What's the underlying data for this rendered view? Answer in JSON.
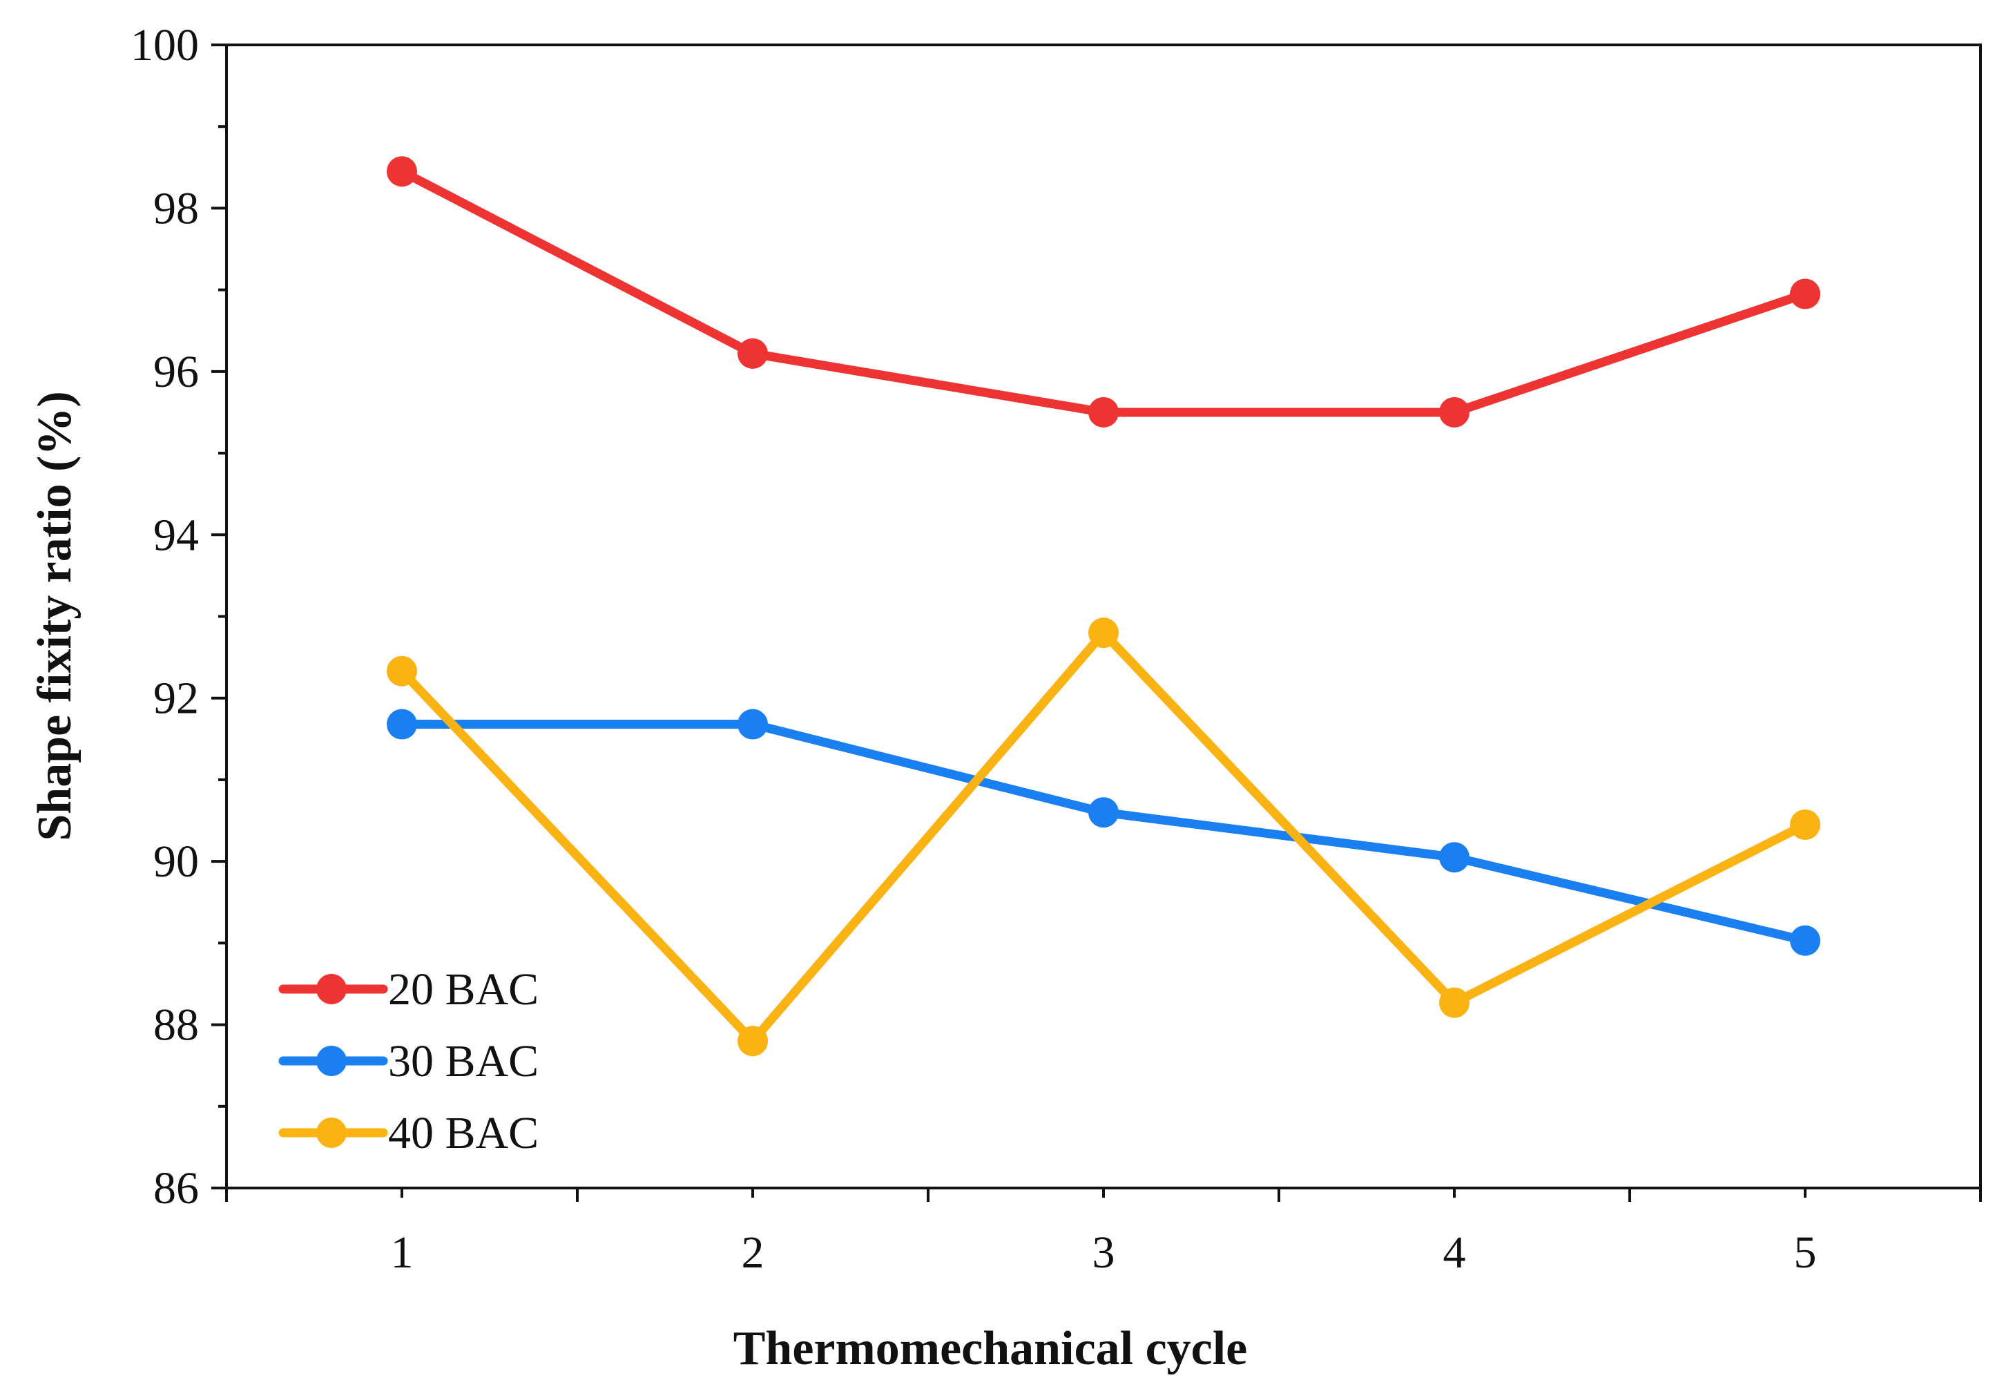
{
  "chart_data": {
    "type": "line",
    "title": "",
    "xlabel": "Thermomechanical cycle",
    "ylabel": "Shape fixity ratio (%)",
    "x": [
      1,
      2,
      3,
      4,
      5
    ],
    "x_tick_labels": [
      "1",
      "2",
      "3",
      "4",
      "5"
    ],
    "xlim": [
      0.5,
      5.5
    ],
    "ylim": [
      86,
      100
    ],
    "y_ticks": [
      86,
      88,
      90,
      92,
      94,
      96,
      98,
      100
    ],
    "y_tick_labels": [
      "86",
      "88",
      "90",
      "92",
      "94",
      "96",
      "98",
      "100"
    ],
    "grid": false,
    "legend_position": "bottom-left",
    "series": [
      {
        "name": "20 BAC",
        "color": "#ee3333",
        "values": [
          98.45,
          96.22,
          95.5,
          95.5,
          96.95
        ]
      },
      {
        "name": "30 BAC",
        "color": "#1a7ff0",
        "values": [
          91.68,
          91.68,
          90.6,
          90.05,
          89.03
        ]
      },
      {
        "name": "40 BAC",
        "color": "#fbb313",
        "values": [
          92.33,
          87.8,
          92.8,
          88.27,
          90.45
        ]
      }
    ]
  }
}
